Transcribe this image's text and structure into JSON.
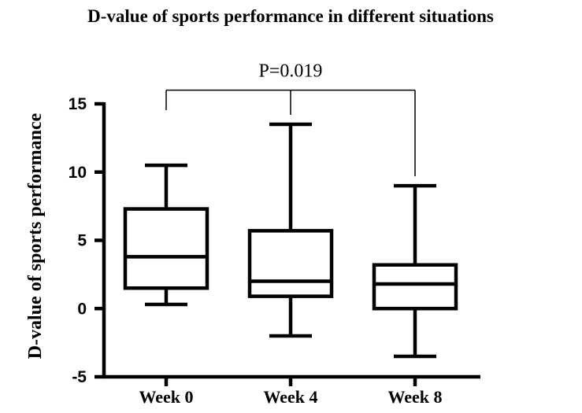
{
  "chart_data": {
    "type": "box",
    "title": "D-value of sports performance in different situations",
    "ylabel": "D-value of sports performance",
    "xlabel": "",
    "ylim": [
      -5,
      15
    ],
    "yticks": [
      "-5",
      "0",
      "5",
      "10",
      "15"
    ],
    "categories": [
      "Week 0",
      "Week 4",
      "Week 8"
    ],
    "boxes": [
      {
        "min": 0.3,
        "q1": 1.5,
        "median": 3.8,
        "q3": 7.3,
        "max": 10.5
      },
      {
        "min": -2.0,
        "q1": 0.9,
        "median": 2.0,
        "q3": 5.7,
        "max": 13.5
      },
      {
        "min": -3.5,
        "q1": 0.0,
        "median": 1.8,
        "q3": 3.2,
        "max": 9.0
      }
    ],
    "annotation": {
      "text": "P=0.019",
      "from": "Week 0",
      "to": "Week 8",
      "mid": "Week 4",
      "y": 16.0
    }
  }
}
